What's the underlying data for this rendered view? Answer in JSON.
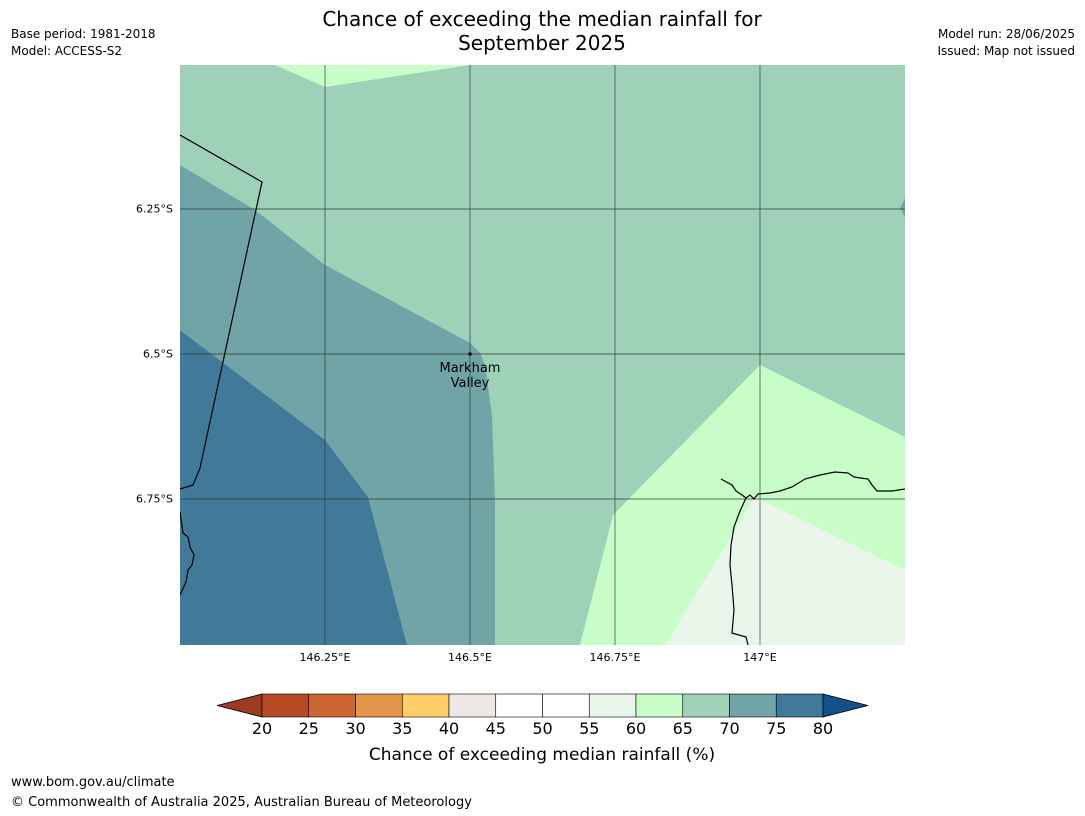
{
  "header": {
    "base_period": "Base period: 1981-2018",
    "model": "Model: ACCESS-S2",
    "model_run": "Model run: 28/06/2025",
    "issued": "Issued: Map not issued",
    "title_line1": "Chance of exceeding the median rainfall for",
    "title_line2": "September 2025"
  },
  "map": {
    "place_label_line1": "Markham",
    "place_label_line2": "Valley",
    "lat_labels": [
      "6.25°S",
      "6.5°S",
      "6.75°S"
    ],
    "lon_labels": [
      "146.25°E",
      "146.5°E",
      "146.75°E",
      "147°E"
    ],
    "colors": {
      "band_60_65": "#c9fdc8",
      "band_65_70": "#9ed1b8",
      "band_70_75": "#70a4a6",
      "band_75_80": "#417a99",
      "band_55_60": "#e9f5e8",
      "gridline": "#2d3b33",
      "boundary": "#000000"
    }
  },
  "legend": {
    "ticks": [
      "20",
      "25",
      "30",
      "35",
      "40",
      "45",
      "50",
      "55",
      "60",
      "65",
      "70",
      "75",
      "80"
    ],
    "colors": [
      "#9c3a22",
      "#b54a25",
      "#cd6530",
      "#e3964a",
      "#ffcd69",
      "#ede8e3",
      "#ffffff",
      "#ffffff",
      "#e9f5e8",
      "#c9fdc8",
      "#9ed1b8",
      "#70a4a6",
      "#417a99",
      "#15508c"
    ],
    "title": "Chance of exceeding median rainfall (%)"
  },
  "footer": {
    "url": "www.bom.gov.au/climate",
    "copyright": "© Commonwealth of Australia 2025, Australian Bureau of Meteorology"
  }
}
